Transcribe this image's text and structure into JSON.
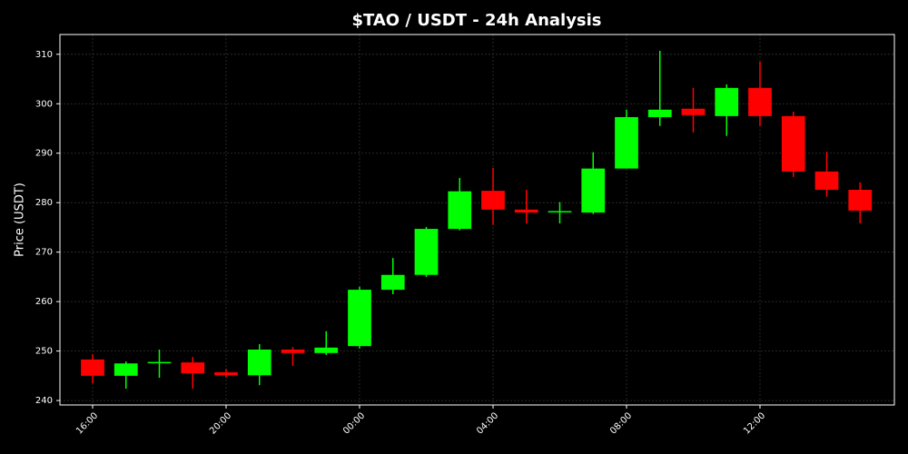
{
  "chart_data": {
    "type": "candlestick",
    "title": "$TAO / USDT - 24h Analysis",
    "y_label": "Price (USDT)",
    "categories": [
      "16:00",
      null,
      null,
      null,
      "20:00",
      null,
      null,
      null,
      "00:00",
      null,
      null,
      null,
      "04:00",
      null,
      null,
      null,
      "08:00",
      null,
      null,
      null,
      "12:00",
      null,
      null,
      null
    ],
    "open": [
      248.3,
      245.0,
      247.6,
      247.7,
      245.7,
      245.1,
      250.3,
      249.6,
      251.0,
      262.4,
      265.4,
      274.7,
      282.4,
      278.6,
      278.1,
      278.0,
      286.9,
      297.3,
      299.0,
      297.5,
      303.2,
      297.5,
      286.3,
      282.6
    ],
    "high": [
      249.4,
      247.9,
      250.3,
      248.8,
      246.4,
      251.4,
      250.8,
      254.0,
      263.0,
      268.8,
      275.1,
      285.0,
      287.0,
      282.6,
      280.1,
      290.2,
      298.8,
      310.7,
      303.2,
      303.9,
      308.5,
      298.4,
      290.3,
      284.1
    ],
    "low": [
      243.5,
      242.4,
      244.6,
      242.4,
      244.6,
      243.1,
      247.0,
      249.2,
      250.5,
      261.5,
      265.0,
      274.4,
      275.5,
      275.8,
      275.8,
      277.7,
      286.9,
      295.5,
      294.2,
      293.5,
      295.5,
      285.2,
      281.2,
      275.8
    ],
    "close": [
      245.0,
      247.5,
      247.8,
      245.5,
      245.1,
      250.3,
      249.6,
      250.7,
      262.4,
      265.4,
      274.7,
      282.3,
      278.6,
      278.0,
      278.3,
      286.9,
      297.3,
      298.8,
      297.7,
      303.2,
      297.5,
      286.3,
      282.6,
      278.4
    ],
    "up_color": "#00ff00",
    "down_color": "#ff0000",
    "ylim": [
      239.1,
      314.0
    ],
    "yticks": [
      240,
      250,
      260,
      270,
      280,
      290,
      300,
      310
    ],
    "grid": true
  }
}
